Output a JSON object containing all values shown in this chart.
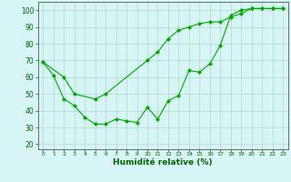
{
  "title": "",
  "xlabel": "Humidité relative (%)",
  "ylabel": "",
  "background_color": "#d8f5f5",
  "grid_color": "#b0d9cc",
  "line_color": "#00aa00",
  "marker_color": "#00aa00",
  "xlim": [
    -0.5,
    23.5
  ],
  "ylim": [
    17,
    105
  ],
  "yticks": [
    20,
    30,
    40,
    50,
    60,
    70,
    80,
    90,
    100
  ],
  "xticks": [
    0,
    1,
    2,
    3,
    4,
    5,
    6,
    7,
    8,
    9,
    10,
    11,
    12,
    13,
    14,
    15,
    16,
    17,
    18,
    19,
    20,
    21,
    22,
    23
  ],
  "line1_x": [
    0,
    1,
    2,
    3,
    4,
    5,
    6,
    7,
    8,
    9,
    10,
    11,
    12,
    13,
    14,
    15,
    16,
    17,
    18,
    19,
    20,
    21,
    22,
    23
  ],
  "line1_y": [
    69,
    61,
    47,
    43,
    36,
    32,
    32,
    35,
    34,
    33,
    42,
    35,
    46,
    49,
    64,
    63,
    68,
    79,
    97,
    100,
    101,
    101,
    101,
    101
  ],
  "line2_x": [
    0,
    2,
    3,
    5,
    6,
    10,
    11,
    12,
    13,
    14,
    15,
    16,
    17,
    18,
    19,
    20,
    21,
    22,
    23
  ],
  "line2_y": [
    69,
    60,
    50,
    47,
    50,
    70,
    75,
    83,
    88,
    90,
    92,
    93,
    93,
    96,
    98,
    101,
    101,
    101,
    101
  ]
}
